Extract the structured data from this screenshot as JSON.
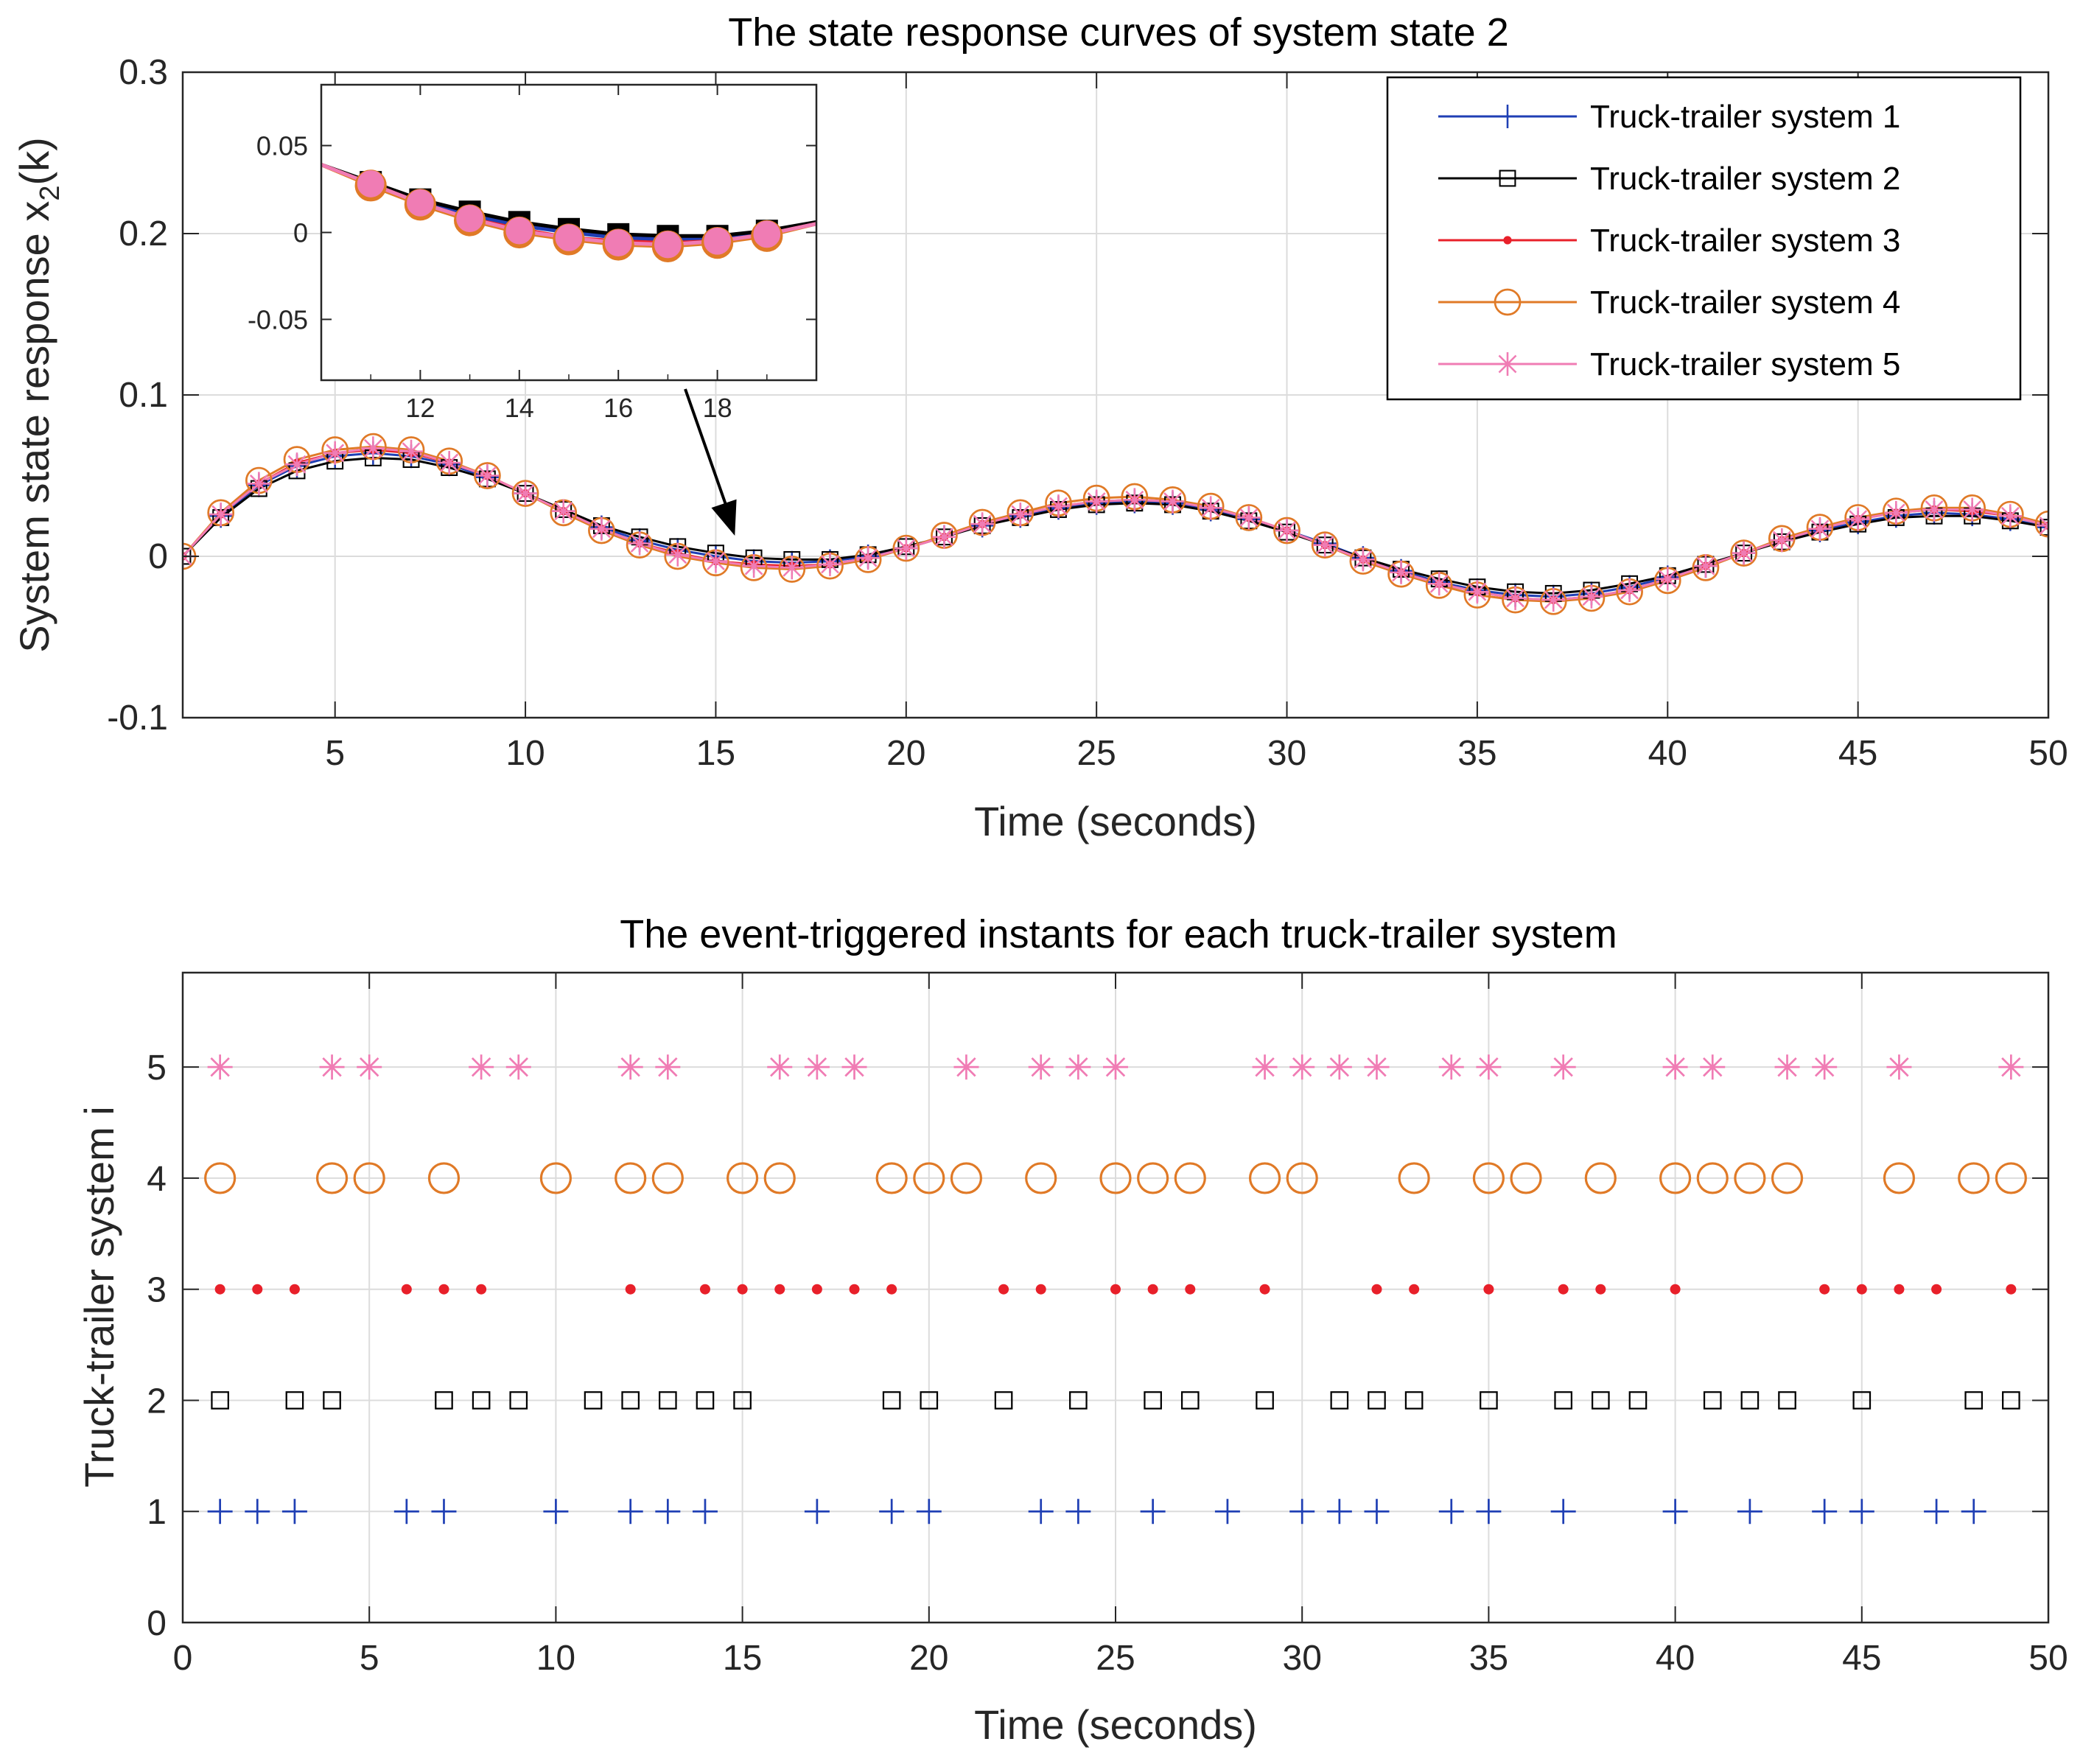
{
  "chart_data": [
    {
      "type": "line",
      "title": "The state response curves of system state 2",
      "xlabel": "Time (seconds)",
      "ylabel_main": "System state response x",
      "ylabel_sub": "2",
      "ylabel_tail": "(k)",
      "xlim": [
        1,
        50
      ],
      "ylim": [
        -0.1,
        0.3
      ],
      "xticks": [
        5,
        10,
        15,
        20,
        25,
        30,
        35,
        40,
        45,
        50
      ],
      "yticks": [
        -0.1,
        0,
        0.1,
        0.2,
        0.3
      ],
      "ytick_labels": [
        "-0.1",
        "0",
        "0.1",
        "0.2",
        "0.3"
      ],
      "grid": true,
      "legend_position": "top-right",
      "x": [
        1,
        2,
        3,
        4,
        5,
        6,
        7,
        8,
        9,
        10,
        11,
        12,
        13,
        14,
        15,
        16,
        17,
        18,
        19,
        20,
        21,
        22,
        23,
        24,
        25,
        26,
        27,
        28,
        29,
        30,
        31,
        32,
        33,
        34,
        35,
        36,
        37,
        38,
        39,
        40,
        41,
        42,
        43,
        44,
        45,
        46,
        47,
        48,
        49,
        50
      ],
      "series": [
        {
          "name": "Truck-trailer system 1",
          "color": "#1f3fb4",
          "marker": "plus",
          "values": [
            0,
            0.025,
            0.044,
            0.056,
            0.062,
            0.064,
            0.062,
            0.057,
            0.049,
            0.039,
            0.028,
            0.018,
            0.01,
            0.004,
            0.0,
            -0.003,
            -0.004,
            -0.003,
            0.0,
            0.005,
            0.012,
            0.019,
            0.025,
            0.03,
            0.033,
            0.034,
            0.033,
            0.029,
            0.023,
            0.016,
            0.008,
            -0.001,
            -0.009,
            -0.016,
            -0.021,
            -0.024,
            -0.025,
            -0.023,
            -0.019,
            -0.013,
            -0.006,
            0.002,
            0.01,
            0.016,
            0.021,
            0.025,
            0.027,
            0.026,
            0.023,
            0.018
          ]
        },
        {
          "name": "Truck-trailer system 2",
          "color": "#000000",
          "marker": "square",
          "values": [
            0,
            0.024,
            0.042,
            0.053,
            0.059,
            0.061,
            0.06,
            0.055,
            0.048,
            0.039,
            0.029,
            0.019,
            0.012,
            0.006,
            0.002,
            -0.001,
            -0.002,
            -0.002,
            0.001,
            0.006,
            0.012,
            0.019,
            0.024,
            0.029,
            0.032,
            0.033,
            0.032,
            0.028,
            0.022,
            0.015,
            0.007,
            -0.001,
            -0.008,
            -0.014,
            -0.019,
            -0.022,
            -0.023,
            -0.021,
            -0.017,
            -0.012,
            -0.005,
            0.002,
            0.009,
            0.015,
            0.02,
            0.024,
            0.025,
            0.025,
            0.022,
            0.018
          ]
        },
        {
          "name": "Truck-trailer system 3",
          "color": "#e8202a",
          "marker": "dot",
          "values": [
            0,
            0.026,
            0.045,
            0.058,
            0.064,
            0.066,
            0.064,
            0.058,
            0.05,
            0.039,
            0.028,
            0.017,
            0.008,
            0.002,
            -0.003,
            -0.005,
            -0.006,
            -0.005,
            -0.001,
            0.005,
            0.012,
            0.02,
            0.026,
            0.031,
            0.034,
            0.035,
            0.034,
            0.03,
            0.024,
            0.016,
            0.007,
            -0.002,
            -0.01,
            -0.017,
            -0.022,
            -0.026,
            -0.027,
            -0.025,
            -0.021,
            -0.014,
            -0.006,
            0.002,
            0.01,
            0.017,
            0.023,
            0.027,
            0.029,
            0.028,
            0.025,
            0.019
          ]
        },
        {
          "name": "Truck-trailer system 4",
          "color": "#e07a27",
          "marker": "circle",
          "values": [
            0,
            0.027,
            0.047,
            0.06,
            0.066,
            0.068,
            0.066,
            0.059,
            0.05,
            0.039,
            0.027,
            0.016,
            0.007,
            0.0,
            -0.004,
            -0.007,
            -0.008,
            -0.006,
            -0.002,
            0.005,
            0.013,
            0.021,
            0.027,
            0.033,
            0.036,
            0.037,
            0.035,
            0.031,
            0.024,
            0.016,
            0.007,
            -0.003,
            -0.011,
            -0.018,
            -0.024,
            -0.027,
            -0.028,
            -0.026,
            -0.022,
            -0.015,
            -0.007,
            0.002,
            0.011,
            0.018,
            0.024,
            0.028,
            0.03,
            0.03,
            0.026,
            0.02
          ]
        },
        {
          "name": "Truck-trailer system 5",
          "color": "#f07cb4",
          "marker": "asterisk",
          "values": [
            0,
            0.026,
            0.045,
            0.057,
            0.064,
            0.067,
            0.065,
            0.058,
            0.05,
            0.039,
            0.028,
            0.017,
            0.008,
            0.001,
            -0.003,
            -0.006,
            -0.007,
            -0.005,
            -0.001,
            0.005,
            0.012,
            0.02,
            0.026,
            0.031,
            0.034,
            0.035,
            0.034,
            0.03,
            0.024,
            0.016,
            0.007,
            -0.002,
            -0.01,
            -0.017,
            -0.022,
            -0.026,
            -0.027,
            -0.025,
            -0.021,
            -0.014,
            -0.006,
            0.002,
            0.01,
            0.017,
            0.023,
            0.027,
            0.029,
            0.029,
            0.025,
            0.019
          ]
        }
      ],
      "inset": {
        "xlim": [
          10,
          20
        ],
        "ylim": [
          -0.085,
          0.085
        ],
        "xticks": [
          12,
          14,
          16,
          18
        ],
        "yticks": [
          -0.05,
          0,
          0.05
        ],
        "ytick_labels": [
          "-0.05",
          "0",
          "0.05"
        ],
        "arrow_target": [
          15.5,
          0.0
        ]
      }
    },
    {
      "type": "scatter",
      "title": "The event-triggered instants for each truck-trailer system",
      "xlabel": "Time (seconds)",
      "ylabel": "Truck-trailer system i",
      "xlim": [
        0,
        50
      ],
      "ylim": [
        0,
        5.85
      ],
      "xticks": [
        0,
        5,
        10,
        15,
        20,
        25,
        30,
        35,
        40,
        45,
        50
      ],
      "yticks": [
        0,
        1,
        2,
        3,
        4,
        5
      ],
      "grid": true,
      "series": [
        {
          "name": "Truck-trailer system 1",
          "system": 1,
          "color": "#1f3fb4",
          "marker": "plus",
          "times": [
            1,
            2,
            3,
            6,
            7,
            10,
            12,
            13,
            14,
            17,
            19,
            20,
            23,
            24,
            26,
            28,
            30,
            31,
            32,
            34,
            35,
            37,
            40,
            42,
            44,
            45,
            47,
            48
          ]
        },
        {
          "name": "Truck-trailer system 2",
          "system": 2,
          "color": "#000000",
          "marker": "square",
          "times": [
            1,
            3,
            4,
            7,
            8,
            9,
            11,
            12,
            13,
            14,
            15,
            19,
            20,
            22,
            24,
            26,
            27,
            29,
            31,
            32,
            33,
            35,
            37,
            38,
            39,
            41,
            42,
            43,
            45,
            48,
            49
          ]
        },
        {
          "name": "Truck-trailer system 3",
          "system": 3,
          "color": "#e8202a",
          "marker": "dot",
          "times": [
            1,
            2,
            3,
            6,
            7,
            8,
            12,
            14,
            15,
            16,
            17,
            18,
            19,
            22,
            23,
            25,
            26,
            27,
            29,
            32,
            33,
            35,
            37,
            38,
            40,
            44,
            45,
            46,
            47,
            49
          ]
        },
        {
          "name": "Truck-trailer system 4",
          "system": 4,
          "color": "#e07a27",
          "marker": "circle",
          "times": [
            1,
            4,
            5,
            7,
            10,
            12,
            13,
            15,
            16,
            19,
            20,
            21,
            23,
            25,
            26,
            27,
            29,
            30,
            33,
            35,
            36,
            38,
            40,
            41,
            42,
            43,
            46,
            48,
            49
          ]
        },
        {
          "name": "Truck-trailer system 5",
          "system": 5,
          "color": "#f07cb4",
          "marker": "asterisk",
          "times": [
            1,
            4,
            5,
            8,
            9,
            12,
            13,
            16,
            17,
            18,
            21,
            23,
            24,
            25,
            29,
            30,
            31,
            32,
            34,
            35,
            37,
            40,
            41,
            43,
            44,
            46,
            49
          ]
        }
      ]
    }
  ]
}
